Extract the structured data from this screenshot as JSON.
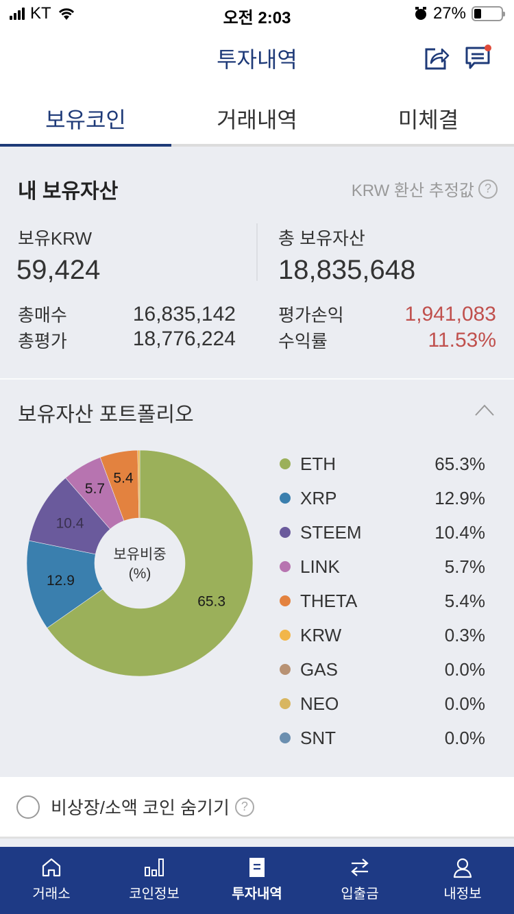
{
  "status_bar": {
    "carrier": "KT",
    "time": "오전 2:03",
    "battery": "27%"
  },
  "header": {
    "title": "투자내역",
    "share_icon": "share-icon",
    "message_icon": "message-icon"
  },
  "tabs": [
    {
      "label": "보유코인",
      "active": true
    },
    {
      "label": "거래내역",
      "active": false
    },
    {
      "label": "미체결",
      "active": false
    }
  ],
  "assets": {
    "title": "내 보유자산",
    "note": "KRW 환산 추정값",
    "krw_label": "보유KRW",
    "krw_value": "59,424",
    "total_label": "총 보유자산",
    "total_value": "18,835,648",
    "buy_label": "총매수",
    "buy_value": "16,835,142",
    "eval_label": "총평가",
    "eval_value": "18,776,224",
    "pnl_label": "평가손익",
    "pnl_value": "1,941,083",
    "rate_label": "수익률",
    "rate_value": "11.53%"
  },
  "portfolio": {
    "title": "보유자산 포트폴리오",
    "center_label_1": "보유비중",
    "center_label_2": "(%)",
    "legend": [
      {
        "name": "ETH",
        "value": "65.3%",
        "color": "#9bb05a"
      },
      {
        "name": "XRP",
        "value": "12.9%",
        "color": "#3a7fae"
      },
      {
        "name": "STEEM",
        "value": "10.4%",
        "color": "#6a5a9c"
      },
      {
        "name": "LINK",
        "value": "5.7%",
        "color": "#b774b0"
      },
      {
        "name": "THETA",
        "value": "5.4%",
        "color": "#e3823f"
      },
      {
        "name": "KRW",
        "value": "0.3%",
        "color": "#f2b64a"
      },
      {
        "name": "GAS",
        "value": "0.0%",
        "color": "#b89274"
      },
      {
        "name": "NEO",
        "value": "0.0%",
        "color": "#d8b660"
      },
      {
        "name": "SNT",
        "value": "0.0%",
        "color": "#6b8fb0"
      }
    ]
  },
  "chart_data": {
    "type": "pie",
    "title": "보유비중 (%)",
    "categories": [
      "ETH",
      "XRP",
      "STEEM",
      "LINK",
      "THETA",
      "KRW",
      "GAS",
      "NEO",
      "SNT"
    ],
    "values": [
      65.3,
      12.9,
      10.4,
      5.7,
      5.4,
      0.3,
      0.0,
      0.0,
      0.0
    ],
    "slice_labels": [
      "65.3",
      "12.9",
      "10.4",
      "5.7",
      "5.4"
    ],
    "colors": [
      "#9bb05a",
      "#3a7fae",
      "#6a5a9c",
      "#b774b0",
      "#e3823f",
      "#f2b64a",
      "#b89274",
      "#d8b660",
      "#6b8fb0"
    ],
    "donut": true,
    "legend_position": "right"
  },
  "hide_option": {
    "label": "비상장/소액 코인 숨기기",
    "checked": false
  },
  "bottom_nav": [
    {
      "label": "거래소",
      "icon": "home-icon"
    },
    {
      "label": "코인정보",
      "icon": "bar-chart-icon"
    },
    {
      "label": "투자내역",
      "icon": "document-icon",
      "active": true
    },
    {
      "label": "입출금",
      "icon": "transfer-icon"
    },
    {
      "label": "내정보",
      "icon": "user-icon"
    }
  ]
}
